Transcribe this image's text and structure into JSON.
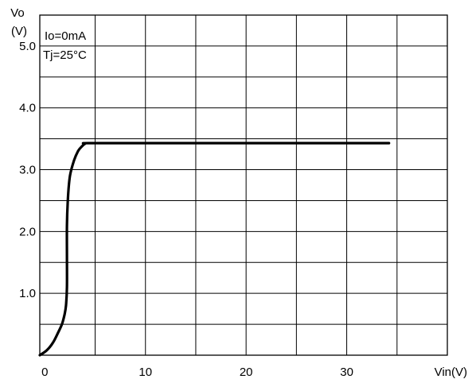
{
  "chart_data": {
    "type": "line",
    "ylabel_line1": "Vo",
    "ylabel_line2": "(V)",
    "xlabel": "Vin(V)",
    "annotations": [
      "Io=0mA",
      "Tj=25°C"
    ],
    "xlim": [
      -0.5,
      40
    ],
    "ylim": [
      0,
      5.5
    ],
    "x_ticks": [
      0,
      10,
      20,
      30
    ],
    "x_tick_labels": [
      "0",
      "10",
      "20",
      "30"
    ],
    "y_ticks": [
      1.0,
      2.0,
      3.0,
      4.0,
      5.0
    ],
    "y_tick_labels": [
      "1.0",
      "2.0",
      "3.0",
      "4.0",
      "5.0"
    ],
    "grid": true,
    "series": [
      {
        "x": [
          -0.5,
          0.2,
          0.8,
          1.3,
          1.7,
          1.95,
          2.1,
          2.2,
          2.2,
          2.2,
          2.3,
          2.5,
          2.9,
          3.3,
          3.7,
          4.0,
          4.3,
          10,
          20,
          30,
          34.2
        ],
        "y": [
          0.0,
          0.08,
          0.2,
          0.36,
          0.5,
          0.65,
          0.8,
          1.1,
          1.6,
          2.1,
          2.55,
          2.9,
          3.15,
          3.3,
          3.38,
          3.42,
          3.43,
          3.43,
          3.43,
          3.43,
          3.43
        ]
      }
    ],
    "colors": {
      "line": "#000000",
      "grid": "#000000",
      "background": "#ffffff"
    }
  }
}
